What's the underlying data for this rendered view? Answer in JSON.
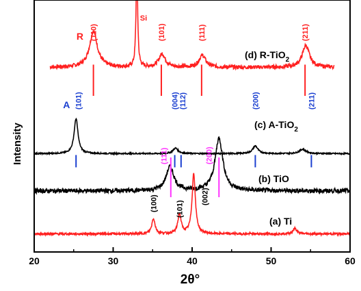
{
  "chart_data": {
    "type": "line",
    "xlabel": "2θ°",
    "ylabel": "Intensity",
    "xlim": [
      20,
      60
    ],
    "x_ticks": [
      20,
      30,
      40,
      50,
      60
    ],
    "yticks_shown": false,
    "grid": false,
    "series": [
      {
        "name": "(d) R-TiO",
        "name_sub": "2",
        "color": "#ff2020",
        "x_range": [
          22,
          58
        ],
        "baseline": 0.26,
        "noise": 0.018,
        "peaks": [
          {
            "x": 27.5,
            "h": 0.33,
            "w": 0.6
          },
          {
            "x": 33.0,
            "h": 0.95,
            "w": 0.12
          },
          {
            "x": 36.2,
            "h": 0.12,
            "w": 0.5
          },
          {
            "x": 41.3,
            "h": 0.11,
            "w": 0.5
          },
          {
            "x": 54.4,
            "h": 0.2,
            "w": 0.55
          }
        ]
      },
      {
        "name": "(c) A-TiO",
        "name_sub": "2",
        "color": "#000000",
        "x_range": [
          20,
          60
        ],
        "baseline": 0.035,
        "noise": 0.006,
        "peaks": [
          {
            "x": 25.3,
            "h": 0.32,
            "w": 0.3
          },
          {
            "x": 37.9,
            "h": 0.05,
            "w": 0.4
          },
          {
            "x": 48.0,
            "h": 0.07,
            "w": 0.4
          },
          {
            "x": 54.0,
            "h": 0.04,
            "w": 0.5
          }
        ]
      },
      {
        "name": "(b) TiO",
        "color": "#000000",
        "x_range": [
          20,
          60
        ],
        "baseline": 0.07,
        "noise": 0.02,
        "peaks": [
          {
            "x": 37.2,
            "h": 0.22,
            "w": 0.6
          },
          {
            "x": 43.4,
            "h": 0.48,
            "w": 0.6
          }
        ]
      },
      {
        "name": "(a) Ti",
        "color": "#ff2020",
        "x_range": [
          20,
          60
        ],
        "baseline": 0.04,
        "noise": 0.01,
        "peaks": [
          {
            "x": 35.1,
            "h": 0.14,
            "w": 0.25
          },
          {
            "x": 38.4,
            "h": 0.18,
            "w": 0.25
          },
          {
            "x": 40.2,
            "h": 0.55,
            "w": 0.25
          },
          {
            "x": 53.0,
            "h": 0.05,
            "w": 0.3
          }
        ]
      }
    ],
    "reference_lines": [
      {
        "series": 0,
        "x": 27.5,
        "color": "#ff2020"
      },
      {
        "series": 0,
        "x": 36.1,
        "color": "#ff2020"
      },
      {
        "series": 0,
        "x": 41.2,
        "color": "#ff2020"
      },
      {
        "series": 0,
        "x": 54.3,
        "color": "#ff2020"
      },
      {
        "series": 1,
        "x": 25.3,
        "color": "#1a3fd0"
      },
      {
        "series": 1,
        "x": 37.8,
        "color": "#1a3fd0"
      },
      {
        "series": 1,
        "x": 38.6,
        "color": "#1a3fd0"
      },
      {
        "series": 1,
        "x": 48.0,
        "color": "#1a3fd0"
      },
      {
        "series": 1,
        "x": 55.1,
        "color": "#1a3fd0"
      },
      {
        "series": 2,
        "x": 37.3,
        "color": "#ff33ff"
      },
      {
        "series": 2,
        "x": 43.4,
        "color": "#ff33ff"
      }
    ],
    "annotations": [
      {
        "text": "R",
        "x": 25.8,
        "color": "#ff2020",
        "kind": "phase",
        "series": 0
      },
      {
        "text": "(110)",
        "x": 27.5,
        "color": "#ff2020",
        "series": 0
      },
      {
        "text": "Si",
        "x": 33.4,
        "color": "#ff2020",
        "kind": "small",
        "series": 0
      },
      {
        "text": "(101)",
        "x": 36.1,
        "color": "#ff2020",
        "series": 0
      },
      {
        "text": "(111)",
        "x": 41.2,
        "color": "#ff2020",
        "series": 0
      },
      {
        "text": "(211)",
        "x": 54.3,
        "color": "#ff2020",
        "series": 0
      },
      {
        "text": "A",
        "x": 24.1,
        "color": "#1a3fd0",
        "kind": "phase",
        "series": 1
      },
      {
        "text": "(101)",
        "x": 25.6,
        "color": "#1a3fd0",
        "series": 1
      },
      {
        "text": "(004)",
        "x": 37.8,
        "color": "#1a3fd0",
        "series": 1
      },
      {
        "text": "(112)",
        "x": 38.8,
        "color": "#1a3fd0",
        "series": 1
      },
      {
        "text": "(200)",
        "x": 48.0,
        "color": "#1a3fd0",
        "series": 1
      },
      {
        "text": "(211)",
        "x": 55.1,
        "color": "#1a3fd0",
        "series": 1
      },
      {
        "text": "(111)",
        "x": 36.4,
        "color": "#ff33ff",
        "series": 2
      },
      {
        "text": "(200)",
        "x": 42.1,
        "color": "#ff33ff",
        "series": 2
      },
      {
        "text": "(100)",
        "x": 35.1,
        "color": "#000000",
        "series": 3
      },
      {
        "text": "(101)",
        "x": 38.4,
        "color": "#000000",
        "series": 3
      },
      {
        "text": "(002)",
        "x": 41.6,
        "color": "#000000",
        "series": 3
      }
    ]
  }
}
